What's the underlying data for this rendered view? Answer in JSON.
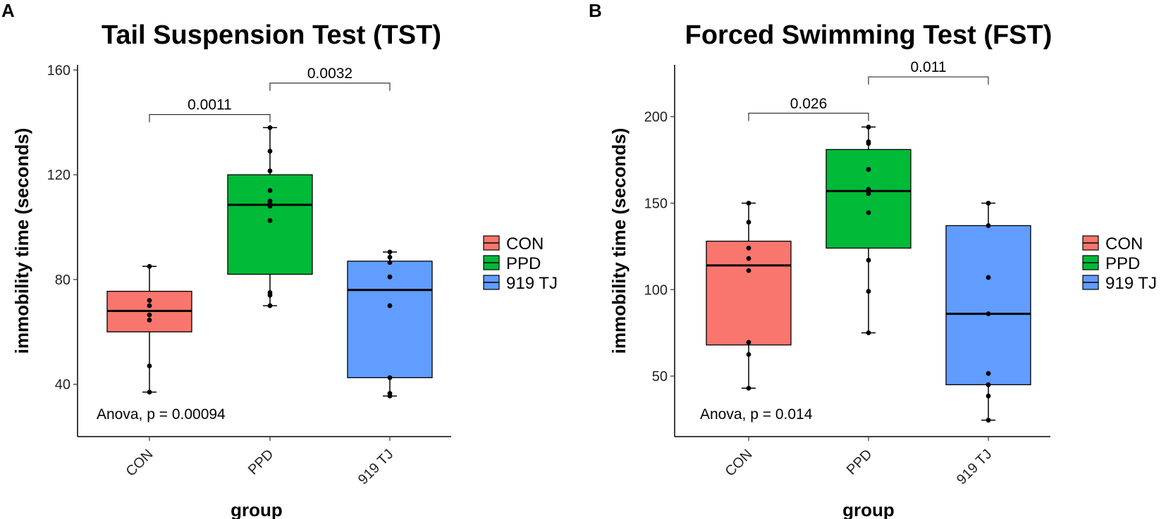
{
  "colors": {
    "CON": "#F8766D",
    "PPD": "#00BA38",
    "919 TJ": "#619CFF"
  },
  "chart_data": [
    {
      "panel": "A",
      "type": "box",
      "title": "Tail Suspension Test (TST)",
      "xlabel": "group",
      "ylabel": "immobility time (seconds)",
      "categories": [
        "CON",
        "PPD",
        "919 TJ"
      ],
      "ylim": [
        20,
        162
      ],
      "yticks": [
        40,
        80,
        120,
        160
      ],
      "boxes": [
        {
          "group": "CON",
          "min": 37,
          "q1": 60,
          "median": 68,
          "q3": 75.5,
          "max": 85,
          "points": [
            37,
            47,
            64.5,
            66.5,
            70,
            72,
            85
          ]
        },
        {
          "group": "PPD",
          "min": 70,
          "q1": 82,
          "median": 108.5,
          "q3": 120,
          "max": 138,
          "points": [
            70,
            74,
            75,
            102.5,
            108,
            109,
            110,
            114,
            121.5,
            129,
            138
          ]
        },
        {
          "group": "919 TJ",
          "min": 35.5,
          "q1": 42.5,
          "median": 76,
          "q3": 87,
          "max": 90.5,
          "points": [
            35.5,
            36.5,
            42.5,
            70,
            81,
            86.5,
            88.5,
            90.5
          ]
        }
      ],
      "comparisons": [
        {
          "from": "CON",
          "to": "PPD",
          "label": "0.0011",
          "y": 143
        },
        {
          "from": "PPD",
          "to": "919 TJ",
          "label": "0.0032",
          "y": 155
        }
      ],
      "annotation": "Anova, p = 0.00094",
      "legend": [
        "CON",
        "PPD",
        "919 TJ"
      ]
    },
    {
      "panel": "B",
      "type": "box",
      "title": "Forced Swimming Test (FST)",
      "xlabel": "group",
      "ylabel": "immobility time (seconds)",
      "categories": [
        "CON",
        "PPD",
        "919 TJ"
      ],
      "ylim": [
        15,
        230
      ],
      "yticks": [
        50,
        100,
        150,
        200
      ],
      "boxes": [
        {
          "group": "CON",
          "min": 43,
          "q1": 68,
          "median": 114,
          "q3": 128,
          "max": 150,
          "points": [
            43,
            62.5,
            69.5,
            111,
            118,
            124,
            139,
            150
          ]
        },
        {
          "group": "PPD",
          "min": 75,
          "q1": 124,
          "median": 157,
          "q3": 181,
          "max": 194,
          "points": [
            75,
            99,
            117,
            144.5,
            155.5,
            158,
            169.5,
            184.5,
            185.5,
            194
          ]
        },
        {
          "group": "919 TJ",
          "min": 24.5,
          "q1": 45,
          "median": 86,
          "q3": 137,
          "max": 150,
          "points": [
            24.5,
            38.5,
            45,
            51.5,
            86,
            107,
            137,
            150
          ]
        }
      ],
      "comparisons": [
        {
          "from": "CON",
          "to": "PPD",
          "label": "0.026",
          "y": 202
        },
        {
          "from": "PPD",
          "to": "919 TJ",
          "label": "0.011",
          "y": 223
        }
      ],
      "annotation": "Anova, p = 0.014",
      "legend": [
        "CON",
        "PPD",
        "919 TJ"
      ]
    }
  ]
}
